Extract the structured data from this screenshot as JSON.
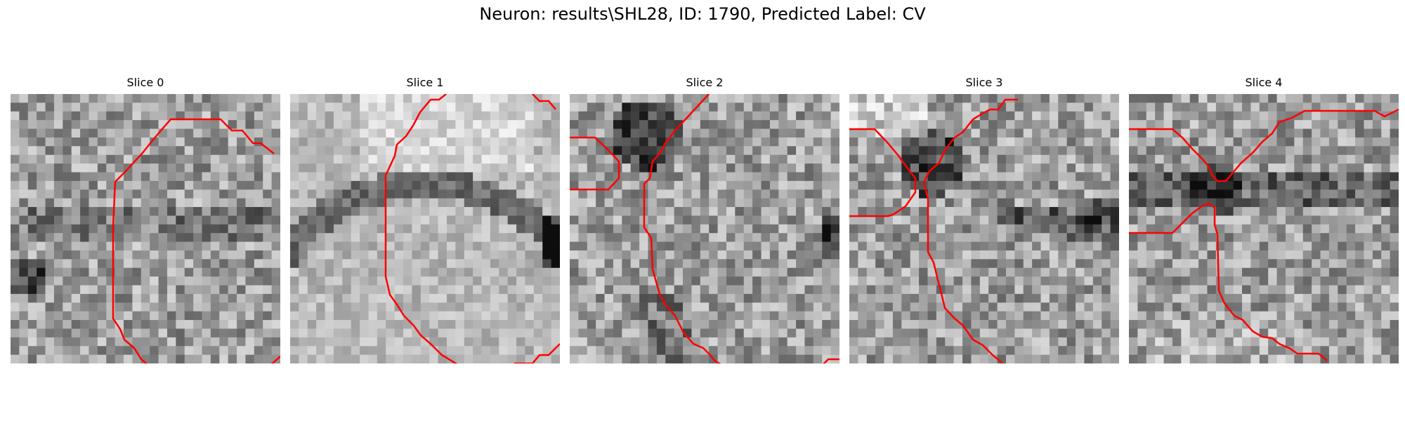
{
  "figure": {
    "title": "Neuron: results\\SHL28, ID: 1790, Predicted Label: CV",
    "contour_color": "#ff0000",
    "colormap": "grayscale"
  },
  "panels": [
    {
      "label": "Slice 0"
    },
    {
      "label": "Slice 1"
    },
    {
      "label": "Slice 2"
    },
    {
      "label": "Slice 3"
    },
    {
      "label": "Slice 4"
    }
  ]
}
